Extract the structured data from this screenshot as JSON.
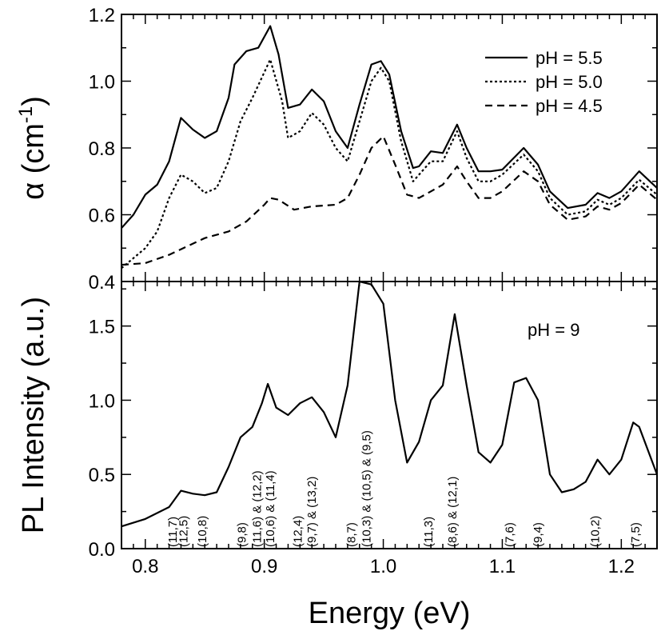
{
  "chart_data": [
    {
      "type": "line",
      "panel": "top",
      "ylabel": "α (cm",
      "ylabel_sup": "-1",
      "ylabel_close": ")",
      "xlim": [
        0.78,
        1.23
      ],
      "ylim": [
        0.4,
        1.2
      ],
      "yticks": [
        0.4,
        0.6,
        0.8,
        1.0,
        1.2
      ],
      "ytick_labels": [
        "0.4",
        "0.6",
        "0.8",
        "1.0",
        "1.2"
      ],
      "legend_position": "top-right",
      "grid": false,
      "series": [
        {
          "name": "pH = 5.5",
          "style": "solid",
          "points": [
            [
              0.78,
              0.56
            ],
            [
              0.79,
              0.6
            ],
            [
              0.8,
              0.66
            ],
            [
              0.81,
              0.69
            ],
            [
              0.82,
              0.76
            ],
            [
              0.83,
              0.89
            ],
            [
              0.84,
              0.855
            ],
            [
              0.85,
              0.83
            ],
            [
              0.86,
              0.85
            ],
            [
              0.87,
              0.95
            ],
            [
              0.875,
              1.05
            ],
            [
              0.885,
              1.09
            ],
            [
              0.895,
              1.1
            ],
            [
              0.905,
              1.165
            ],
            [
              0.912,
              1.08
            ],
            [
              0.92,
              0.92
            ],
            [
              0.93,
              0.93
            ],
            [
              0.94,
              0.975
            ],
            [
              0.95,
              0.94
            ],
            [
              0.96,
              0.85
            ],
            [
              0.97,
              0.8
            ],
            [
              0.98,
              0.93
            ],
            [
              0.99,
              1.05
            ],
            [
              0.998,
              1.06
            ],
            [
              1.005,
              1.02
            ],
            [
              1.015,
              0.85
            ],
            [
              1.025,
              0.74
            ],
            [
              1.03,
              0.745
            ],
            [
              1.04,
              0.79
            ],
            [
              1.05,
              0.785
            ],
            [
              1.062,
              0.87
            ],
            [
              1.07,
              0.8
            ],
            [
              1.08,
              0.73
            ],
            [
              1.09,
              0.73
            ],
            [
              1.1,
              0.735
            ],
            [
              1.118,
              0.8
            ],
            [
              1.13,
              0.75
            ],
            [
              1.14,
              0.67
            ],
            [
              1.155,
              0.62
            ],
            [
              1.17,
              0.63
            ],
            [
              1.18,
              0.665
            ],
            [
              1.19,
              0.65
            ],
            [
              1.2,
              0.67
            ],
            [
              1.215,
              0.73
            ],
            [
              1.23,
              0.68
            ]
          ]
        },
        {
          "name": "pH = 5.0",
          "style": "dotted",
          "points": [
            [
              0.78,
              0.44
            ],
            [
              0.79,
              0.47
            ],
            [
              0.8,
              0.5
            ],
            [
              0.81,
              0.55
            ],
            [
              0.82,
              0.65
            ],
            [
              0.83,
              0.72
            ],
            [
              0.84,
              0.7
            ],
            [
              0.85,
              0.665
            ],
            [
              0.86,
              0.68
            ],
            [
              0.87,
              0.76
            ],
            [
              0.88,
              0.88
            ],
            [
              0.89,
              0.95
            ],
            [
              0.905,
              1.065
            ],
            [
              0.915,
              0.94
            ],
            [
              0.92,
              0.83
            ],
            [
              0.93,
              0.85
            ],
            [
              0.94,
              0.905
            ],
            [
              0.95,
              0.87
            ],
            [
              0.96,
              0.8
            ],
            [
              0.97,
              0.76
            ],
            [
              0.98,
              0.88
            ],
            [
              0.99,
              1.0
            ],
            [
              0.998,
              1.04
            ],
            [
              1.005,
              1.0
            ],
            [
              1.015,
              0.82
            ],
            [
              1.025,
              0.7
            ],
            [
              1.04,
              0.76
            ],
            [
              1.05,
              0.76
            ],
            [
              1.062,
              0.85
            ],
            [
              1.07,
              0.77
            ],
            [
              1.08,
              0.7
            ],
            [
              1.09,
              0.7
            ],
            [
              1.1,
              0.72
            ],
            [
              1.118,
              0.78
            ],
            [
              1.13,
              0.73
            ],
            [
              1.14,
              0.65
            ],
            [
              1.155,
              0.6
            ],
            [
              1.17,
              0.61
            ],
            [
              1.18,
              0.645
            ],
            [
              1.19,
              0.63
            ],
            [
              1.2,
              0.65
            ],
            [
              1.215,
              0.705
            ],
            [
              1.23,
              0.66
            ]
          ]
        },
        {
          "name": "pH = 4.5",
          "style": "dashed",
          "points": [
            [
              0.78,
              0.45
            ],
            [
              0.8,
              0.455
            ],
            [
              0.82,
              0.48
            ],
            [
              0.85,
              0.53
            ],
            [
              0.87,
              0.55
            ],
            [
              0.885,
              0.58
            ],
            [
              0.9,
              0.63
            ],
            [
              0.905,
              0.65
            ],
            [
              0.912,
              0.645
            ],
            [
              0.925,
              0.615
            ],
            [
              0.94,
              0.625
            ],
            [
              0.96,
              0.63
            ],
            [
              0.97,
              0.65
            ],
            [
              0.98,
              0.72
            ],
            [
              0.99,
              0.8
            ],
            [
              1.0,
              0.835
            ],
            [
              1.01,
              0.75
            ],
            [
              1.02,
              0.66
            ],
            [
              1.03,
              0.65
            ],
            [
              1.04,
              0.67
            ],
            [
              1.05,
              0.69
            ],
            [
              1.062,
              0.745
            ],
            [
              1.07,
              0.7
            ],
            [
              1.08,
              0.65
            ],
            [
              1.09,
              0.65
            ],
            [
              1.1,
              0.67
            ],
            [
              1.118,
              0.73
            ],
            [
              1.13,
              0.7
            ],
            [
              1.14,
              0.63
            ],
            [
              1.155,
              0.585
            ],
            [
              1.17,
              0.595
            ],
            [
              1.18,
              0.625
            ],
            [
              1.19,
              0.615
            ],
            [
              1.2,
              0.635
            ],
            [
              1.215,
              0.69
            ],
            [
              1.23,
              0.645
            ]
          ]
        }
      ]
    },
    {
      "type": "line",
      "panel": "bottom",
      "ylabel": "PL Intensity (a.u.)",
      "xlabel": "Energy (eV)",
      "xlim": [
        0.78,
        1.23
      ],
      "ylim": [
        0.0,
        1.8
      ],
      "xticks": [
        0.8,
        0.9,
        1.0,
        1.1,
        1.2
      ],
      "xtick_labels": [
        "0.8",
        "0.9",
        "1.0",
        "1.1",
        "1.2"
      ],
      "yticks": [
        0.0,
        0.5,
        1.0,
        1.5
      ],
      "ytick_labels": [
        "0.0",
        "0.5",
        "1.0",
        "1.5"
      ],
      "annotation": "pH = 9",
      "grid": false,
      "series": [
        {
          "style": "solid",
          "points": [
            [
              0.78,
              0.15
            ],
            [
              0.8,
              0.2
            ],
            [
              0.82,
              0.28
            ],
            [
              0.83,
              0.39
            ],
            [
              0.84,
              0.37
            ],
            [
              0.85,
              0.36
            ],
            [
              0.86,
              0.38
            ],
            [
              0.87,
              0.55
            ],
            [
              0.88,
              0.75
            ],
            [
              0.89,
              0.82
            ],
            [
              0.898,
              0.98
            ],
            [
              0.903,
              1.11
            ],
            [
              0.91,
              0.95
            ],
            [
              0.92,
              0.9
            ],
            [
              0.93,
              0.98
            ],
            [
              0.94,
              1.02
            ],
            [
              0.95,
              0.92
            ],
            [
              0.96,
              0.75
            ],
            [
              0.97,
              1.1
            ],
            [
              0.98,
              1.8
            ],
            [
              0.99,
              1.78
            ],
            [
              1.0,
              1.65
            ],
            [
              1.01,
              1.0
            ],
            [
              1.02,
              0.58
            ],
            [
              1.03,
              0.72
            ],
            [
              1.04,
              1.0
            ],
            [
              1.05,
              1.1
            ],
            [
              1.06,
              1.58
            ],
            [
              1.07,
              1.1
            ],
            [
              1.08,
              0.65
            ],
            [
              1.09,
              0.58
            ],
            [
              1.1,
              0.7
            ],
            [
              1.11,
              1.12
            ],
            [
              1.12,
              1.15
            ],
            [
              1.13,
              1.0
            ],
            [
              1.14,
              0.5
            ],
            [
              1.15,
              0.38
            ],
            [
              1.16,
              0.4
            ],
            [
              1.17,
              0.45
            ],
            [
              1.18,
              0.6
            ],
            [
              1.19,
              0.5
            ],
            [
              1.2,
              0.6
            ],
            [
              1.21,
              0.85
            ],
            [
              1.215,
              0.82
            ],
            [
              1.23,
              0.5
            ]
          ]
        }
      ],
      "labels": [
        {
          "x": 0.823,
          "lines": [
            "(11,7)"
          ]
        },
        {
          "x": 0.832,
          "lines": [
            "(12,5)"
          ]
        },
        {
          "x": 0.848,
          "lines": [
            "(10,8)"
          ]
        },
        {
          "x": 0.881,
          "lines": [
            "(9,8)"
          ]
        },
        {
          "x": 0.894,
          "lines": [
            "(11,6)",
            "&",
            "(12,2)"
          ]
        },
        {
          "x": 0.905,
          "lines": [
            "(10,6)",
            "&",
            "(11,4)"
          ]
        },
        {
          "x": 0.928,
          "lines": [
            "(12,4)"
          ]
        },
        {
          "x": 0.94,
          "lines": [
            "(9,7)",
            "&",
            "(13,2)"
          ]
        },
        {
          "x": 0.973,
          "lines": [
            "(8,7)"
          ]
        },
        {
          "x": 0.986,
          "lines": [
            "(10,3)",
            "&",
            "(10,5)",
            "&",
            "(9,5)"
          ]
        },
        {
          "x": 1.038,
          "lines": [
            "(11,3)"
          ]
        },
        {
          "x": 1.058,
          "lines": [
            "(8,6)",
            "&",
            "(12,1)"
          ]
        },
        {
          "x": 1.106,
          "lines": [
            "(7,6)"
          ]
        },
        {
          "x": 1.13,
          "lines": [
            "(9,4)"
          ]
        },
        {
          "x": 1.178,
          "lines": [
            "(10,2)"
          ]
        },
        {
          "x": 1.212,
          "lines": [
            "(7,5)"
          ]
        }
      ]
    }
  ]
}
